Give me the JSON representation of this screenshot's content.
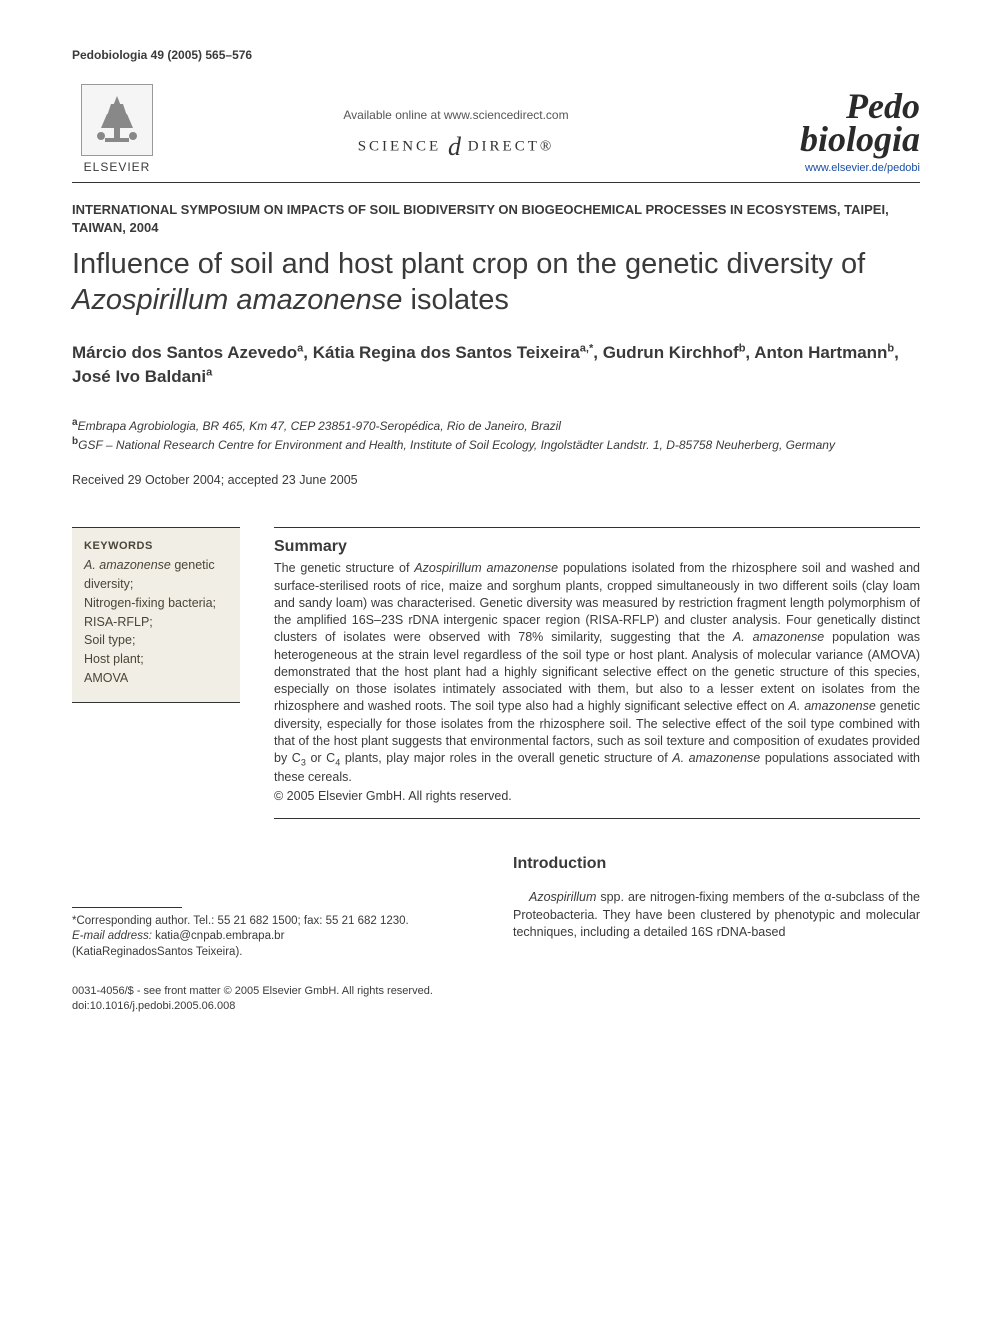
{
  "citation": "Pedobiologia 49 (2005) 565–576",
  "publisher": {
    "label": "ELSEVIER"
  },
  "availableOnline": "Available online at www.sciencedirect.com",
  "scienceDirect": {
    "pre": "SCIENCE",
    "post": "DIRECT®"
  },
  "journal": {
    "line1": "Pedo",
    "line2": "biologia",
    "link": "www.elsevier.de/pedobi"
  },
  "symposium": "INTERNATIONAL SYMPOSIUM ON IMPACTS OF SOIL BIODIVERSITY ON BIOGEOCHEMICAL PROCESSES IN ECOSYSTEMS, TAIPEI, TAIWAN, 2004",
  "title": {
    "pre": "Influence of soil and host plant crop on the genetic diversity of ",
    "species": "Azospirillum amazonense",
    "post": " isolates"
  },
  "authors": {
    "a1": "Márcio dos Santos Azevedo",
    "s1": "a",
    "a2": "Kátia Regina dos Santos Teixeira",
    "s2": "a,*",
    "a3": "Gudrun Kirchhof",
    "s3": "b",
    "a4": "Anton Hartmann",
    "s4": "b",
    "a5": "José Ivo Baldani",
    "s5": "a"
  },
  "affiliations": {
    "a_sup": "a",
    "a_text": "Embrapa Agrobiologia, BR 465, Km 47, CEP 23851-970-Seropédica, Rio de Janeiro, Brazil",
    "b_sup": "b",
    "b_text": "GSF – National Research Centre for Environment and Health, Institute of Soil Ecology, Ingolstädter Landstr. 1, D-85758 Neuherberg, Germany"
  },
  "dates": "Received 29 October 2004; accepted 23 June 2005",
  "keywords": {
    "label": "KEYWORDS",
    "items_html": "<span class=\"sp\">A. amazonense</span> genetic diversity;<br>Nitrogen-fixing bacteria;<br>RISA-RFLP;<br>Soil type;<br>Host plant;<br>AMOVA"
  },
  "summary": {
    "label": "Summary",
    "body_html": "The genetic structure of <span class=\"sp\">Azospirillum amazonense</span> populations isolated from the rhizosphere soil and washed and surface-sterilised roots of rice, maize and sorghum plants, cropped simultaneously in two different soils (clay loam and sandy loam) was characterised. Genetic diversity was measured by restriction fragment length polymorphism of the amplified 16S–23S rDNA intergenic spacer region (RISA-RFLP) and cluster analysis. Four genetically distinct clusters of isolates were observed with 78% similarity, suggesting that the <span class=\"sp\">A. amazonense</span> population was heterogeneous at the strain level regardless of the soil type or host plant. Analysis of molecular variance (AMOVA) demonstrated that the host plant had a highly significant selective effect on the genetic structure of this species, especially on those isolates intimately associated with them, but also to a lesser extent on isolates from the rhizosphere and washed roots. The soil type also had a highly significant selective effect on <span class=\"sp\">A. amazonense</span> genetic diversity, especially for those isolates from the rhizosphere soil. The selective effect of the soil type combined with that of the host plant suggests that environmental factors, such as soil texture and composition of exudates provided by C<sub>3</sub> or C<sub>4</sub> plants, play major roles in the overall genetic structure of <span class=\"sp\">A. amazonense</span> populations associated with these cereals.",
    "copyright": "© 2005 Elsevier GmbH. All rights reserved."
  },
  "footnote": {
    "corr": "*Corresponding author. Tel.: 55 21 682 1500; fax: 55 21 682 1230.",
    "email_label": "E-mail address:",
    "email": "katia@cnpab.embrapa.br",
    "email_name": "(KatiaReginadosSantos Teixeira)."
  },
  "intro": {
    "heading": "Introduction",
    "body_html": "<span class=\"sp\">Azospirillum</span> spp. are nitrogen-fixing members of the α-subclass of the Proteobacteria. They have been clustered by phenotypic and molecular techniques, including a detailed 16S rDNA-based"
  },
  "footer": {
    "line1": "0031-4056/$ - see front matter © 2005 Elsevier GmbH. All rights reserved.",
    "line2": "doi:10.1016/j.pedobi.2005.06.008"
  },
  "colors": {
    "text": "#3a3a3a",
    "link": "#1a4fa3",
    "keywords_bg": "#f1eee5"
  }
}
